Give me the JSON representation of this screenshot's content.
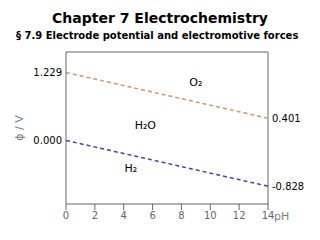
{
  "chart_data": {
    "type": "line",
    "title": "Chapter 7 Electrochemistry",
    "subtitle": "§ 7.9 Electrode potential and electromotive forces",
    "xlabel": "pH",
    "ylabel": "ϕ / V",
    "xlim": [
      0,
      14
    ],
    "ylim": [
      -1.15,
      1.6
    ],
    "xticks": [
      0,
      2,
      4,
      6,
      8,
      10,
      12,
      14
    ],
    "yticks": [],
    "tick_labels": "x",
    "grid": false,
    "series": [
      {
        "x": [
          0,
          14
        ],
        "values": [
          1.229,
          0.401
        ],
        "color": "#d4956a",
        "line_style": "dashed"
      },
      {
        "x": [
          0,
          14
        ],
        "values": [
          0.0,
          -0.828
        ],
        "color": "#4444aa",
        "line_style": "dashed"
      }
    ],
    "annotations": [
      {
        "text": "1.229",
        "x": 0,
        "y": 1.229
      },
      {
        "text": "0.000",
        "x": 0,
        "y": 0.0
      },
      {
        "text": "0.401",
        "x": 14,
        "y": 0.401
      },
      {
        "text": "-0.828",
        "x": 14,
        "y": -0.828
      },
      {
        "text": "O₂",
        "x": 9.0,
        "y": 1.05
      },
      {
        "text": "H₂O",
        "x": 5.5,
        "y": 0.28
      },
      {
        "text": "H₂",
        "x": 4.5,
        "y": -0.5
      }
    ]
  }
}
